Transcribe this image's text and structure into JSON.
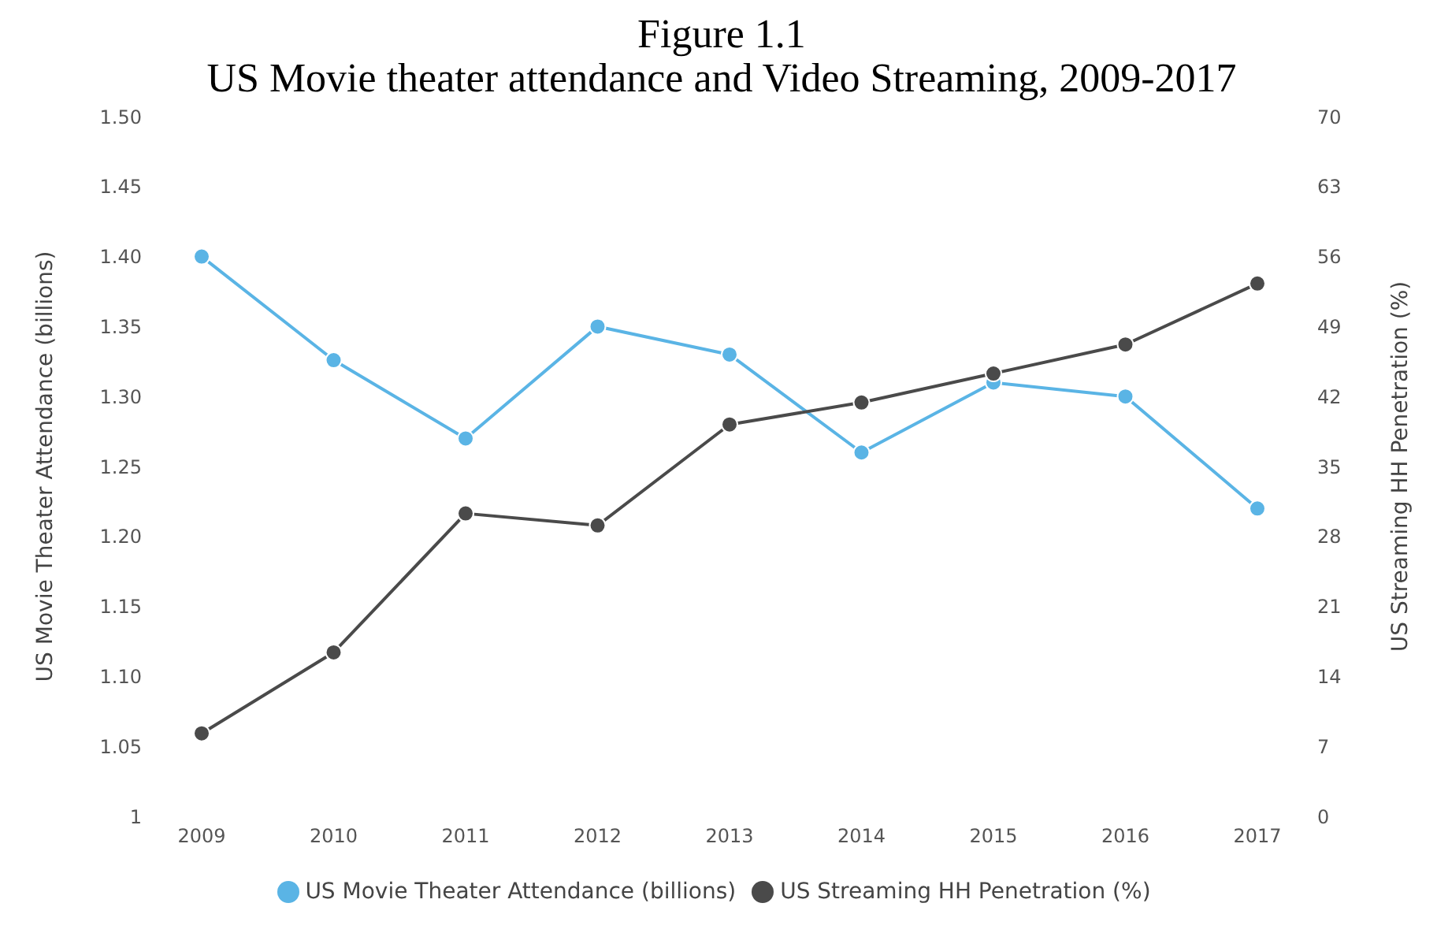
{
  "chart_data": {
    "type": "line",
    "title": "Figure 1.1",
    "subtitle": "US Movie theater attendance and Video Streaming, 2009-2017",
    "ylabel": "US Movie Theater Attendance (billions)",
    "y2label": "US Streaming HH Penetration (%)",
    "categories": [
      "2009",
      "2010",
      "2011",
      "2012",
      "2013",
      "2014",
      "2015",
      "2016",
      "2017"
    ],
    "series": [
      {
        "name": "US Movie Theater Attendance (billions)",
        "color": "#5ab4e5",
        "values": [
          1.4,
          1.326,
          1.27,
          1.35,
          1.33,
          1.26,
          1.31,
          1.3,
          1.22
        ]
      },
      {
        "name": "US Streaming HH Penetration (%)",
        "color": "#4a4a4a",
        "axis": "y2",
        "values": [
          8.3,
          16.4,
          30.3,
          29.1,
          39.2,
          41.4,
          44.3,
          47.2,
          53.3
        ]
      }
    ],
    "ylim": [
      1,
      1.5
    ],
    "yticks": [
      1,
      1.05,
      {
        "value": 1.1,
        "label": "1.10"
      },
      1.15,
      {
        "value": 1.2,
        "label": "1.20"
      },
      1.25,
      {
        "value": 1.3,
        "label": "1.30"
      },
      1.35,
      {
        "value": 1.4,
        "label": "1.40"
      },
      1.45,
      {
        "value": 1.5,
        "label": "1.50"
      }
    ],
    "y2lim": [
      0,
      70
    ],
    "y2ticks": [
      0,
      7,
      14,
      21,
      28,
      35,
      42,
      49,
      56,
      63,
      70
    ],
    "grid": false,
    "legend": "bottom",
    "marker": "circle",
    "line_style": "solid"
  }
}
